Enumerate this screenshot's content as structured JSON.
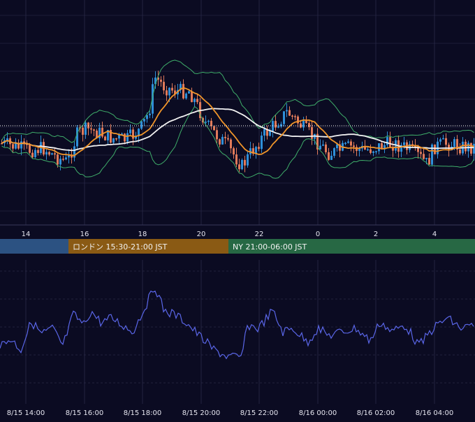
{
  "colors": {
    "background": "#0b0b22",
    "grid": "#2a2a48",
    "bull_candle": "#2f8fd8",
    "bear_candle": "#e07a5a",
    "bollinger": "#3fae6a",
    "ma_fast": "#f0952a",
    "ma_slow": "#f2f2f2",
    "oscillator": "#5a66e8",
    "tick_text": "#e6e6f0",
    "tokyo_session": "#2c5282",
    "london_session": "#8a5a14",
    "ny_session": "#276844"
  },
  "price_axis": {
    "x_ticks": [
      "14",
      "16",
      "18",
      "20",
      "22",
      "0",
      "2",
      "4"
    ],
    "current_level_line": "dotted"
  },
  "sessions": [
    {
      "id": "tokyo",
      "label": ""
    },
    {
      "id": "london",
      "label": "ロンドン 15:30-21:00 JST"
    },
    {
      "id": "ny",
      "label": "NY 21:00-06:00 JST"
    }
  ],
  "lower_axis": {
    "x_ticks": [
      "8/15 14:00",
      "8/15 16:00",
      "8/15 18:00",
      "8/15 20:00",
      "8/15 22:00",
      "8/16 00:00",
      "8/16 02:00",
      "8/16 04:00"
    ]
  },
  "chart_data": [
    {
      "type": "candlestick",
      "series": [
        {
          "indicator": "moving-average-fast"
        },
        {
          "indicator": "moving-average-slow"
        },
        {
          "indicator": "bollinger-bands"
        }
      ],
      "x_range_hours": [
        13.1,
        21.1
      ],
      "grid": true,
      "ticks": [
        "14",
        "16",
        "18",
        "20",
        "22",
        "0",
        "2",
        "4"
      ]
    },
    {
      "type": "line",
      "series": [
        {
          "indicator": "oscillator"
        }
      ],
      "grid": true,
      "ticks": [
        "8/15 14:00",
        "8/15 16:00",
        "8/15 18:00",
        "8/15 20:00",
        "8/15 22:00",
        "8/16 00:00",
        "8/16 02:00",
        "8/16 04:00"
      ]
    }
  ]
}
